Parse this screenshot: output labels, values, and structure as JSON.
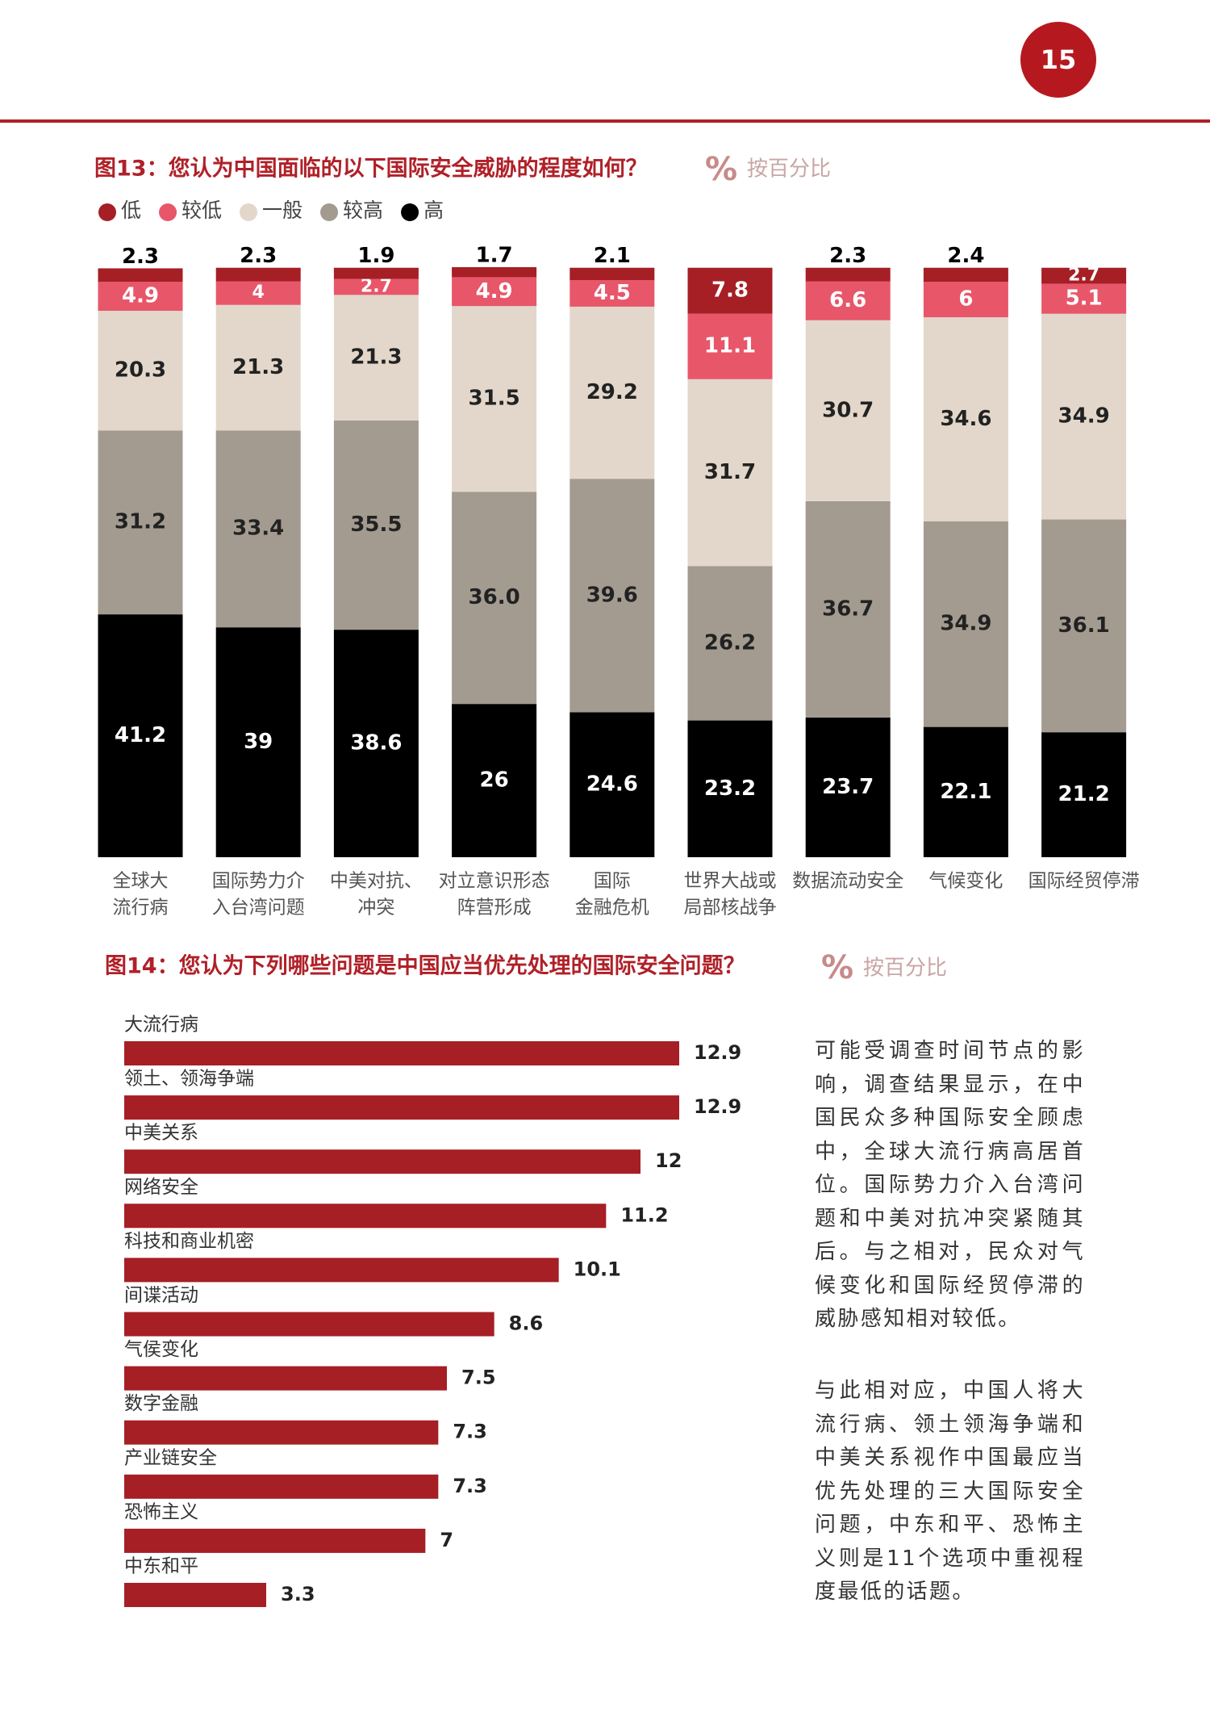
{
  "page_number": "15",
  "chart_data": [
    {
      "type": "stacked_bar",
      "title": "图13：您认为中国面临的以下国际安全威胁的程度如何？",
      "unit_symbol": "%",
      "subtitle": "按百分比",
      "categories": [
        [
          "全球大",
          "流行病"
        ],
        [
          "国际势力介",
          "入台湾问题"
        ],
        [
          "中美对抗、",
          "冲突"
        ],
        [
          "对立意识形态",
          "阵营形成"
        ],
        [
          "国际",
          "金融危机"
        ],
        [
          "世界大战或",
          "局部核战争"
        ],
        [
          "数据流动安全"
        ],
        [
          "气候变化"
        ],
        [
          "国际经贸停滞"
        ]
      ],
      "series": [
        {
          "name": "低",
          "color": "#a51f25",
          "label_color": "#ffffff",
          "values": [
            2.3,
            2.3,
            1.9,
            1.7,
            2.1,
            7.8,
            2.3,
            2.4,
            2.7
          ]
        },
        {
          "name": "较低",
          "color": "#e8566a",
          "label_color": "#ffffff",
          "values": [
            4.9,
            4,
            2.7,
            4.9,
            4.5,
            11.1,
            6.6,
            6,
            5.1
          ]
        },
        {
          "name": "一般",
          "color": "#e2d7ca",
          "label_color": "#222222",
          "values": [
            20.3,
            21.3,
            21.3,
            31.5,
            29.2,
            31.7,
            30.7,
            34.6,
            34.9
          ]
        },
        {
          "name": "较高",
          "color": "#a39b90",
          "label_color": "#222222",
          "values": [
            31.2,
            33.4,
            35.5,
            36.0,
            39.6,
            26.2,
            36.7,
            34.9,
            36.1
          ],
          "value_labels": [
            "31.2",
            "33.4",
            "35.5",
            "36.0",
            "39.6",
            "26.2",
            "36.7",
            "34.9",
            "36.1"
          ]
        },
        {
          "name": "高",
          "color": "#000000",
          "label_color": "#ffffff",
          "values": [
            41.2,
            39,
            38.6,
            26,
            24.6,
            23.2,
            23.7,
            22.1,
            21.2
          ]
        }
      ],
      "legend": "top-left"
    },
    {
      "type": "hbar",
      "title": "图14：您认为下列哪些问题是中国应当优先处理的国际安全问题？",
      "unit_symbol": "%",
      "subtitle": "按百分比",
      "categories": [
        "大流行病",
        "领土、领海争端",
        "中美关系",
        "网络安全",
        "科技和商业机密",
        "间谍活动",
        "气侯变化",
        "数字金融",
        "产业链安全",
        "恐怖主义",
        "中东和平"
      ],
      "values": [
        12.9,
        12.9,
        12,
        11.2,
        10.1,
        8.6,
        7.5,
        7.3,
        7.3,
        7,
        3.3
      ],
      "color": "#a51f25"
    }
  ],
  "paragraphs": [
    "可能受调查时间节点的影响，调查结果显示，在中国民众多种国际安全顾虑中，全球大流行病高居首位。国际势力介入台湾问题和中美对抗冲突紧随其后。与之相对，民众对气候变化和国际经贸停滞的威胁感知相对较低。",
    "与此相对应，中国人将大流行病、领土领海争端和中美关系视作中国最应当优先处理的三大国际安全问题，中东和平、恐怖主义则是11个选项中重视程度最低的话题。"
  ]
}
